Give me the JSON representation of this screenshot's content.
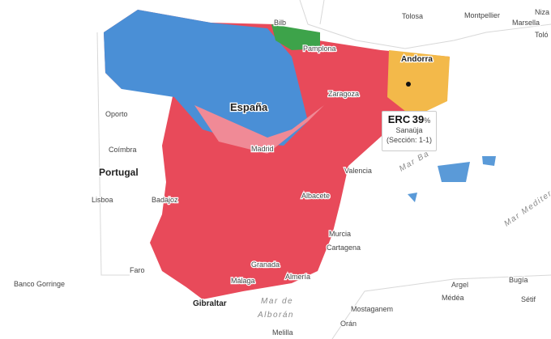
{
  "labels": [
    "Bilb",
    "Tolosa",
    "Montpellier",
    "Marsella",
    "Niza",
    "Toló",
    "Pamplona",
    "Andorra",
    "España",
    "Oporto",
    "Coímbra",
    "Portugal",
    "Madrid",
    "Valencia",
    "Lisboa",
    "Badajoz",
    "Albacete",
    "Murcia",
    "Cartagena",
    "Faro",
    "Banco Gorringe",
    "Granada",
    "Málaga",
    "Almería",
    "Gibraltar",
    "Mar de",
    "Alborán",
    "Mostaganem",
    "Orán",
    "Melilla",
    "Argel",
    "Bugía",
    "Médéa",
    "Sétif",
    "Mar Ba",
    "Mar Mediterr",
    "Zaragoza"
  ],
  "tooltip": {
    "party": "ERC",
    "value": 39,
    "unit": "%",
    "place": "Sanaüja",
    "section": "(Sección: 1-1)"
  }
}
